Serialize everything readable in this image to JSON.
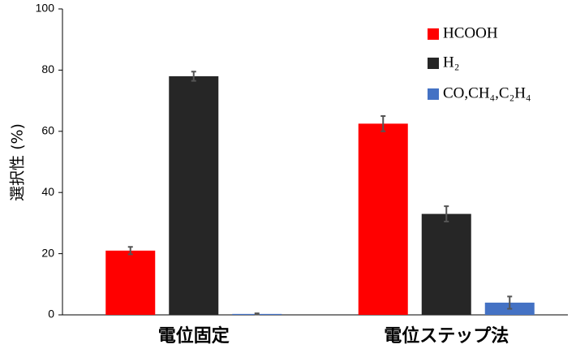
{
  "chart_data": {
    "type": "bar",
    "y_label": "選択性 (%)",
    "categories": [
      "電位固定",
      "電位ステップ法"
    ],
    "series": [
      {
        "name": "HCOOH",
        "color": "#ff0000",
        "values": [
          21,
          62.5
        ],
        "errors": [
          1.2,
          2.5
        ]
      },
      {
        "name": "H₂",
        "color": "#262626",
        "values": [
          78,
          33
        ],
        "errors": [
          1.5,
          2.5
        ]
      },
      {
        "name": "CO,CH₄,C₂H₄",
        "color": "#4472c4",
        "values": [
          0.3,
          4
        ],
        "errors": [
          0.2,
          2
        ]
      }
    ],
    "ylim": [
      0,
      100
    ],
    "yticks": [
      0,
      20,
      40,
      60,
      80,
      100
    ],
    "grid": false,
    "legend": "upper right"
  }
}
